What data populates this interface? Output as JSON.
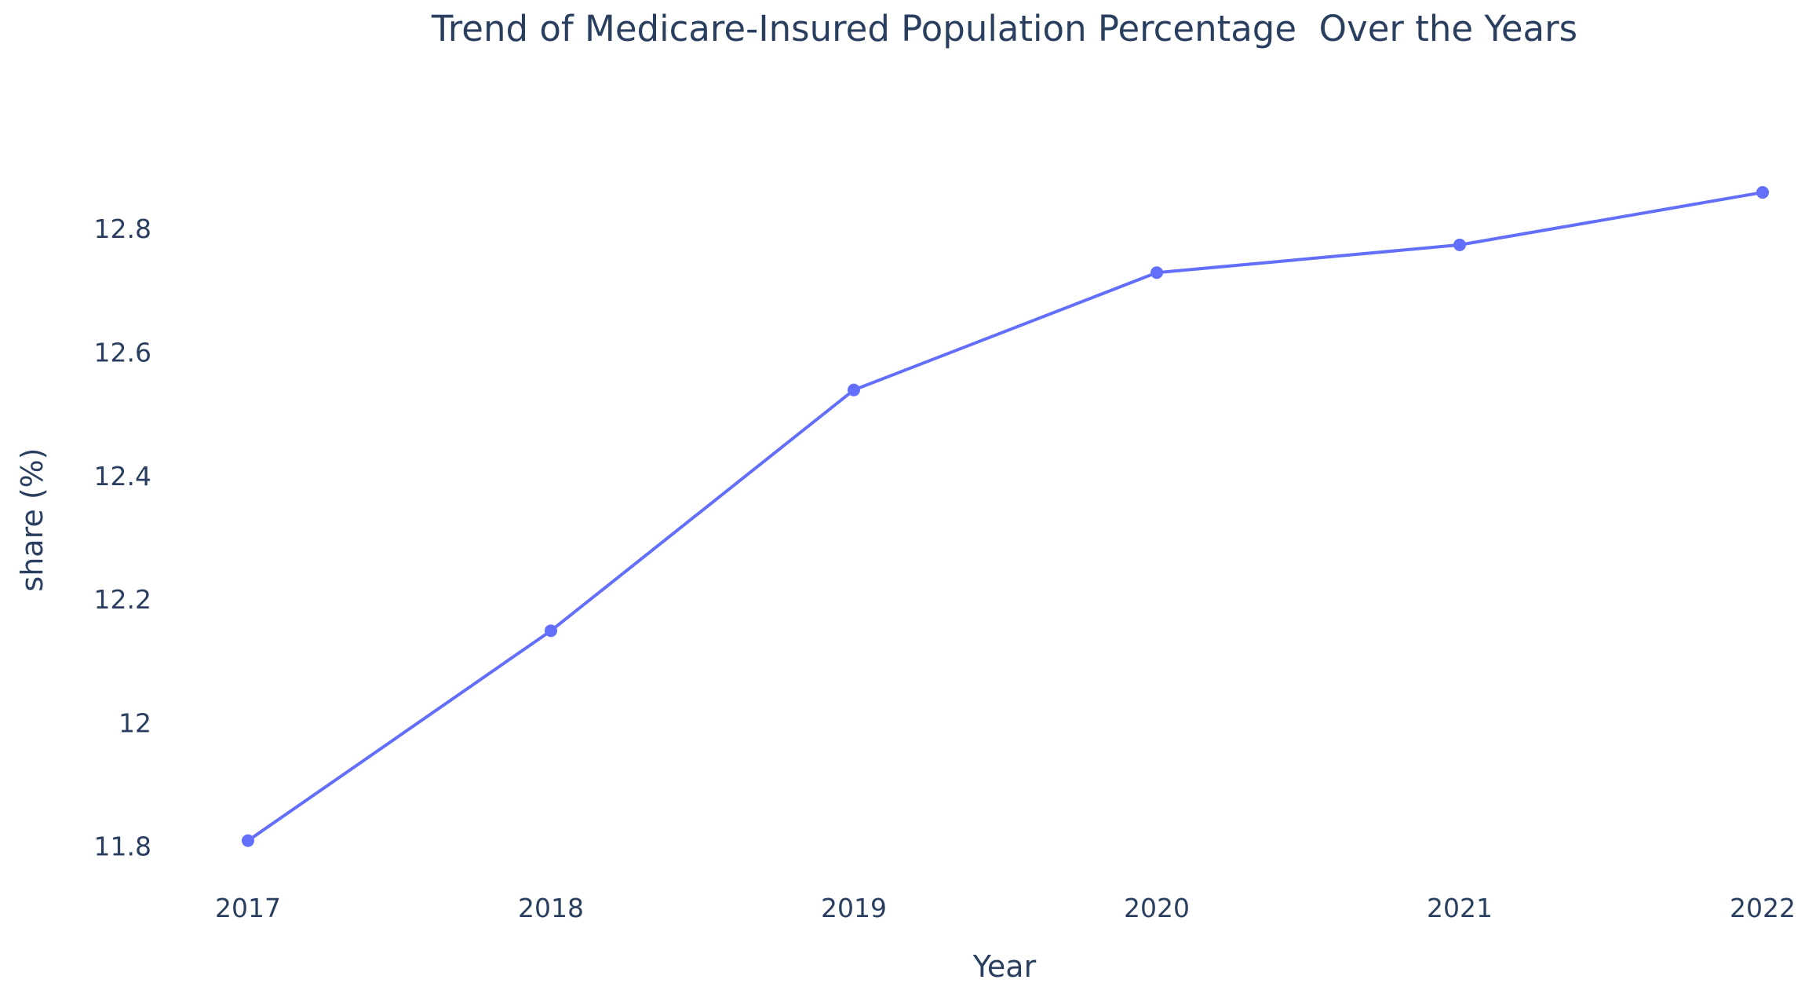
{
  "chart_data": {
    "type": "line",
    "title": "Trend of Medicare-Insured Population Percentage  Over the Years",
    "xlabel": "Year",
    "ylabel": "share (%)",
    "x": [
      "2017",
      "2018",
      "2019",
      "2020",
      "2021",
      "2022"
    ],
    "series": [
      {
        "values": [
          11.81,
          12.15,
          12.54,
          12.73,
          12.775,
          12.86
        ]
      }
    ],
    "ylim": [
      11.76,
      12.93
    ],
    "yticks": [
      11.8,
      12,
      12.2,
      12.4,
      12.6,
      12.8
    ],
    "ytick_labels": [
      "11.8",
      "12",
      "12.2",
      "12.4",
      "12.6",
      "12.8"
    ],
    "grid": false,
    "line_color": "#636efa"
  }
}
